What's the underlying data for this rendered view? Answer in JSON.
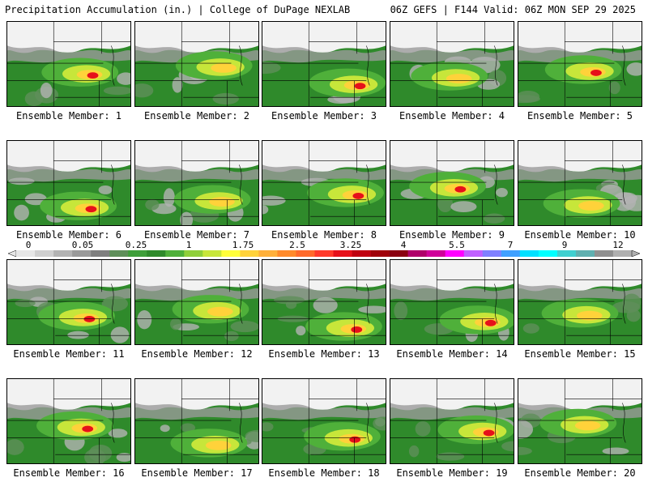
{
  "header": {
    "left_title": "Precipitation Accumulation (in.) | College of DuPage NEXLAB",
    "right_title": "06Z GEFS | F144 Valid: 06Z MON SEP 29 2025"
  },
  "colorbar": {
    "tick_labels": [
      "0",
      "0.05",
      "0.25",
      "1",
      "1.75",
      "2.5",
      "3.25",
      "4",
      "5.5",
      "7",
      "9",
      "12"
    ],
    "colors": [
      "#e6e6e6",
      "#cfcfcf",
      "#b3b3b3",
      "#9a9a9a",
      "#7f7f7f",
      "#5f8f5a",
      "#3f9f3a",
      "#2f8a2b",
      "#4fb03a",
      "#8fcf3a",
      "#c7e63a",
      "#ffff3a",
      "#ffd23a",
      "#ffb03a",
      "#ff8a2a",
      "#ff6a2a",
      "#ff3a2a",
      "#e6101a",
      "#c00010",
      "#a0000a",
      "#8a0010",
      "#b0006a",
      "#d0009a",
      "#ff00ff",
      "#c060ff",
      "#8080ff",
      "#40a0ff",
      "#00e0ff",
      "#00ffff",
      "#40d0d0",
      "#60b0b0",
      "#909090",
      "#b0b0b0"
    ]
  },
  "members": [
    {
      "label": "Ensemble Member: 1"
    },
    {
      "label": "Ensemble Member: 2"
    },
    {
      "label": "Ensemble Member: 3"
    },
    {
      "label": "Ensemble Member: 4"
    },
    {
      "label": "Ensemble Member: 5"
    },
    {
      "label": "Ensemble Member: 6"
    },
    {
      "label": "Ensemble Member: 7"
    },
    {
      "label": "Ensemble Member: 8"
    },
    {
      "label": "Ensemble Member: 9"
    },
    {
      "label": "Ensemble Member: 10"
    },
    {
      "label": "Ensemble Member: 11"
    },
    {
      "label": "Ensemble Member: 12"
    },
    {
      "label": "Ensemble Member: 13"
    },
    {
      "label": "Ensemble Member: 14"
    },
    {
      "label": "Ensemble Member: 15"
    },
    {
      "label": "Ensemble Member: 16"
    },
    {
      "label": "Ensemble Member: 17"
    },
    {
      "label": "Ensemble Member: 18"
    },
    {
      "label": "Ensemble Member: 19"
    },
    {
      "label": "Ensemble Member: 20"
    }
  ]
}
